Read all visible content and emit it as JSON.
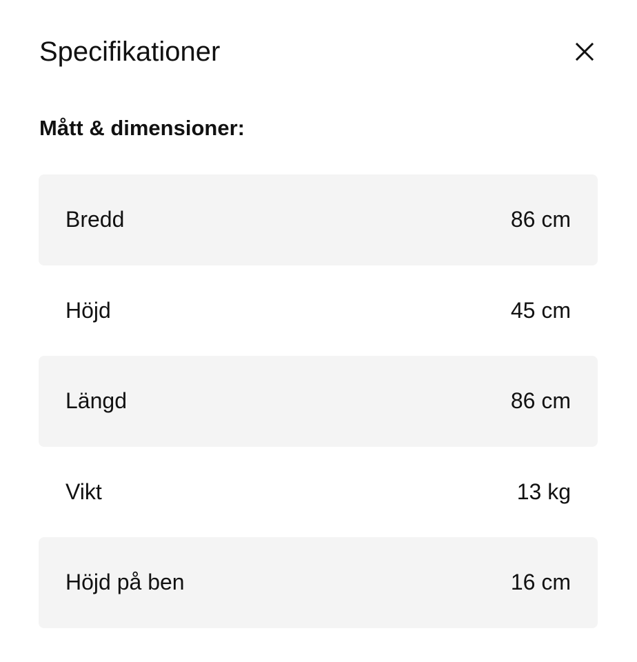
{
  "dialog": {
    "title": "Specifikationer",
    "close_icon": "close-icon",
    "section_heading": "Mått & dimensioner:",
    "specs": [
      {
        "label": "Bredd",
        "value": "86 cm"
      },
      {
        "label": "Höjd",
        "value": "45 cm"
      },
      {
        "label": "Längd",
        "value": "86 cm"
      },
      {
        "label": "Vikt",
        "value": "13 kg"
      },
      {
        "label": "Höjd på ben",
        "value": "16 cm"
      }
    ],
    "colors": {
      "row_shade": "#f4f4f4",
      "text": "#111111"
    }
  }
}
